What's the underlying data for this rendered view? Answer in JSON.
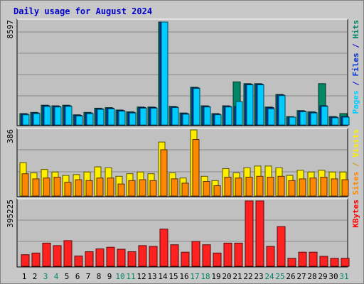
{
  "chart_data": {
    "type": "bar",
    "title": "Daily usage for August 2024",
    "days": [
      "1",
      "2",
      "3",
      "4",
      "5",
      "6",
      "7",
      "8",
      "9",
      "10",
      "11",
      "12",
      "13",
      "14",
      "15",
      "16",
      "17",
      "18",
      "19",
      "20",
      "21",
      "22",
      "23",
      "24",
      "25",
      "26",
      "27",
      "28",
      "29",
      "30",
      "31"
    ],
    "weekend_days": [
      "3",
      "4",
      "10",
      "11",
      "17",
      "18",
      "24",
      "25",
      "31"
    ],
    "panels": [
      {
        "id": "top",
        "max_label": "8597",
        "ymax": 8597,
        "legend": [
          {
            "text": "Pages",
            "color": "#00ccff"
          },
          {
            "text": " / ",
            "color": "#0000cc"
          },
          {
            "text": "Files",
            "color": "#0033cc"
          },
          {
            "text": " / ",
            "color": "#0000cc"
          },
          {
            "text": "Hits",
            "color": "#008866"
          }
        ],
        "series": [
          {
            "color": "#008866",
            "values": [
              950,
              1050,
              1650,
              1600,
              1650,
              850,
              1050,
              1400,
              1450,
              1250,
              1100,
              1500,
              1500,
              8597,
              1550,
              1000,
              3150,
              1600,
              950,
              1600,
              3600,
              3450,
              3450,
              1500,
              2550,
              700,
              1200,
              1100,
              3450,
              700,
              950
            ]
          },
          {
            "color": "#0033cc",
            "values": [
              900,
              1000,
              1600,
              1550,
              1600,
              800,
              1000,
              1350,
              1400,
              1200,
              1050,
              1450,
              1450,
              8597,
              1500,
              950,
              3100,
              1550,
              900,
              1550,
              1550,
              3400,
              3400,
              1450,
              2500,
              650,
              1150,
              1050,
              1600,
              650,
              700
            ]
          },
          {
            "color": "#00ccff",
            "values": [
              850,
              950,
              1550,
              1500,
              1550,
              750,
              950,
              1300,
              1350,
              1150,
              1000,
              1400,
              1400,
              8597,
              1450,
              900,
              3050,
              1500,
              850,
              1500,
              1950,
              3350,
              3350,
              1350,
              2450,
              650,
              1100,
              1000,
              1550,
              600,
              650
            ]
          }
        ]
      },
      {
        "id": "mid",
        "max_label": "386",
        "ymax": 386,
        "legend": [
          {
            "text": "Sites",
            "color": "#ff8800"
          },
          {
            "text": " / ",
            "color": "#cc9900"
          },
          {
            "text": "Visits",
            "color": "#ffee00"
          }
        ],
        "series": [
          {
            "color": "#ffee00",
            "values": [
              195,
              135,
              155,
              140,
              120,
              125,
              140,
              170,
              165,
              115,
              130,
              140,
              130,
              315,
              135,
              105,
              386,
              115,
              90,
              160,
              135,
              165,
              175,
              175,
              165,
              120,
              150,
              140,
              150,
              140,
              140
            ]
          },
          {
            "color": "#ff8800",
            "values": [
              130,
              100,
              105,
              110,
              80,
              95,
              90,
              105,
              105,
              70,
              90,
              95,
              90,
              270,
              100,
              75,
              330,
              85,
              60,
              110,
              105,
              110,
              115,
              110,
              115,
              90,
              100,
              105,
              110,
              100,
              95
            ]
          }
        ]
      },
      {
        "id": "bottom",
        "max_label": "395225",
        "ymax": 395225,
        "legend": [
          {
            "text": "KBytes",
            "color": "#ff0000"
          }
        ],
        "series": [
          {
            "color": "#ff2020",
            "values": [
              70000,
              80000,
              140000,
              125000,
              155000,
              62000,
              88000,
              105000,
              115000,
              103000,
              88000,
              125000,
              120000,
              225000,
              130000,
              85000,
              150000,
              130000,
              80000,
              140000,
              140000,
              395225,
              395225,
              120000,
              240000,
              48000,
              85000,
              85000,
              60000,
              48000,
              48000
            ]
          }
        ]
      }
    ]
  }
}
